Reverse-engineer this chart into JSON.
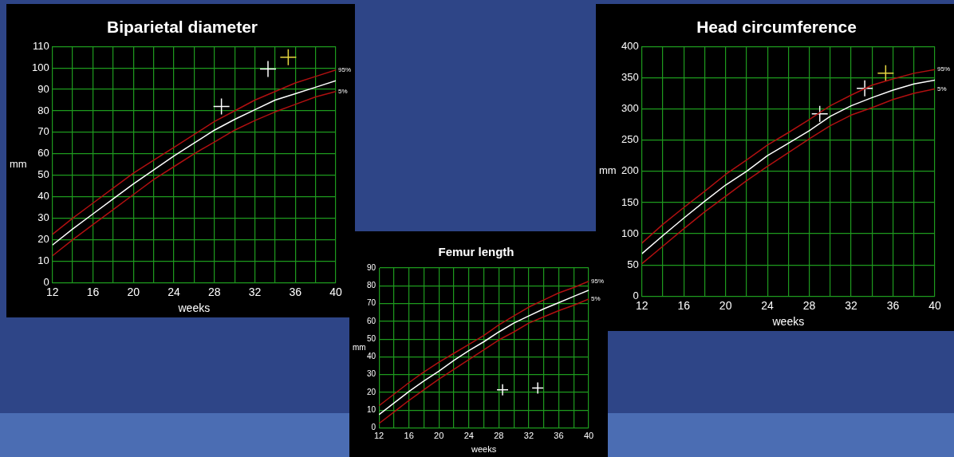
{
  "chart_data": [
    {
      "type": "line",
      "title": "Biparietal diameter",
      "xlabel": "weeks",
      "ylabel": "mm",
      "xlim": [
        12,
        40
      ],
      "ylim": [
        0,
        110
      ],
      "xticks": [
        12,
        {
          "value": 14,
          "label": null
        },
        16,
        {
          "value": 18,
          "label": null
        },
        20,
        {
          "value": 22,
          "label": null
        },
        24,
        {
          "value": 26,
          "label": null
        },
        28,
        {
          "value": 30,
          "label": null
        },
        32,
        {
          "value": 34,
          "label": null
        },
        36,
        {
          "value": 38,
          "label": null
        },
        40
      ],
      "yticks": [
        0,
        10,
        20,
        30,
        40,
        50,
        60,
        70,
        80,
        90,
        100,
        110
      ],
      "grid": true,
      "legend": false,
      "x": [
        12,
        14,
        16,
        18,
        20,
        22,
        24,
        26,
        28,
        30,
        32,
        34,
        36,
        38,
        40
      ],
      "series": [
        {
          "name": "95%",
          "color": "#b01010",
          "marker": "none",
          "values": [
            22.5,
            30,
            37,
            44,
            51,
            57,
            63,
            69,
            75,
            80,
            85,
            89,
            93,
            96,
            99
          ]
        },
        {
          "color": "#ffffff",
          "marker": "none",
          "values": [
            17.5,
            25,
            32,
            39,
            46,
            52.5,
            59,
            65,
            71,
            76,
            80.5,
            85,
            88,
            91,
            94
          ]
        },
        {
          "name": "5%",
          "color": "#b01010",
          "marker": "none",
          "values": [
            12.5,
            20,
            27,
            34,
            41,
            48,
            54,
            60,
            65.5,
            71,
            75.5,
            79.5,
            83,
            86.5,
            89
          ]
        },
        {
          "type": "scatter",
          "color": "#ffffff",
          "marker": "cross",
          "x": [
            28.7,
            33.3
          ],
          "values": [
            82,
            99.5
          ]
        },
        {
          "type": "scatter",
          "color": "#e8d840",
          "marker": "cross",
          "x": [
            35.3
          ],
          "values": [
            105
          ]
        }
      ]
    },
    {
      "type": "line",
      "title": "Femur length",
      "xlabel": "weeks",
      "ylabel": "mm",
      "xlim": [
        12,
        40
      ],
      "ylim": [
        0,
        90
      ],
      "xticks": [
        12,
        {
          "value": 14,
          "label": null
        },
        16,
        {
          "value": 18,
          "label": null
        },
        20,
        {
          "value": 22,
          "label": null
        },
        24,
        {
          "value": 26,
          "label": null
        },
        28,
        {
          "value": 30,
          "label": null
        },
        32,
        {
          "value": 34,
          "label": null
        },
        36,
        {
          "value": 38,
          "label": null
        },
        40
      ],
      "yticks": [
        0,
        10,
        20,
        30,
        40,
        50,
        60,
        70,
        80,
        90
      ],
      "grid": true,
      "legend": false,
      "x": [
        12,
        14,
        16,
        18,
        20,
        22,
        24,
        26,
        28,
        30,
        32,
        34,
        36,
        38,
        40
      ],
      "series": [
        {
          "name": "95%",
          "color": "#b01010",
          "marker": "none",
          "values": [
            12.5,
            19,
            25.5,
            31.5,
            37,
            42,
            47,
            52,
            58,
            63,
            68,
            72,
            76,
            79,
            82.5
          ]
        },
        {
          "color": "#ffffff",
          "marker": "none",
          "values": [
            7.5,
            14,
            20.5,
            26.5,
            32,
            38,
            43.5,
            48.5,
            54,
            59,
            63,
            67,
            70.5,
            74,
            77.5
          ]
        },
        {
          "name": "5%",
          "color": "#b01010",
          "marker": "none",
          "values": [
            2.5,
            9,
            15.5,
            21.5,
            27.5,
            33,
            38.5,
            44,
            49.5,
            54,
            59,
            62.5,
            66,
            69,
            72.5
          ]
        },
        {
          "type": "scatter",
          "color": "#ffffff",
          "marker": "cross",
          "x": [
            28.5,
            33.2
          ],
          "values": [
            21.5,
            22.5
          ]
        }
      ]
    },
    {
      "type": "line",
      "title": "Head circumference",
      "xlabel": "weeks",
      "ylabel": "mm",
      "xlim": [
        12,
        40
      ],
      "ylim": [
        0,
        400
      ],
      "xticks": [
        12,
        {
          "value": 14,
          "label": null
        },
        16,
        {
          "value": 18,
          "label": null
        },
        20,
        {
          "value": 22,
          "label": null
        },
        24,
        {
          "value": 26,
          "label": null
        },
        28,
        {
          "value": 30,
          "label": null
        },
        32,
        {
          "value": 34,
          "label": null
        },
        36,
        {
          "value": 38,
          "label": null
        },
        40
      ],
      "yticks": [
        0,
        50,
        100,
        150,
        200,
        250,
        300,
        350,
        400
      ],
      "grid": true,
      "legend": false,
      "x": [
        12,
        14,
        16,
        18,
        20,
        22,
        24,
        26,
        28,
        30,
        32,
        34,
        36,
        38,
        40
      ],
      "series": [
        {
          "name": "95%",
          "color": "#b01010",
          "marker": "none",
          "values": [
            85,
            115,
            142,
            168,
            195,
            218,
            242,
            262,
            283,
            305,
            322,
            338,
            348,
            357,
            363
          ]
        },
        {
          "color": "#ffffff",
          "marker": "none",
          "values": [
            68,
            97,
            125,
            152,
            178,
            200,
            225,
            245,
            265,
            288,
            305,
            318,
            330,
            340,
            346
          ]
        },
        {
          "name": "5%",
          "color": "#b01010",
          "marker": "none",
          "values": [
            52,
            80,
            108,
            135,
            160,
            185,
            208,
            230,
            252,
            273,
            290,
            302,
            315,
            325,
            332
          ]
        },
        {
          "type": "scatter",
          "color": "#ffffff",
          "marker": "cross",
          "x": [
            29,
            33.3
          ],
          "values": [
            292,
            333
          ]
        },
        {
          "type": "scatter",
          "color": "#e8d840",
          "marker": "cross",
          "x": [
            35.3
          ],
          "values": [
            357
          ]
        }
      ]
    }
  ]
}
